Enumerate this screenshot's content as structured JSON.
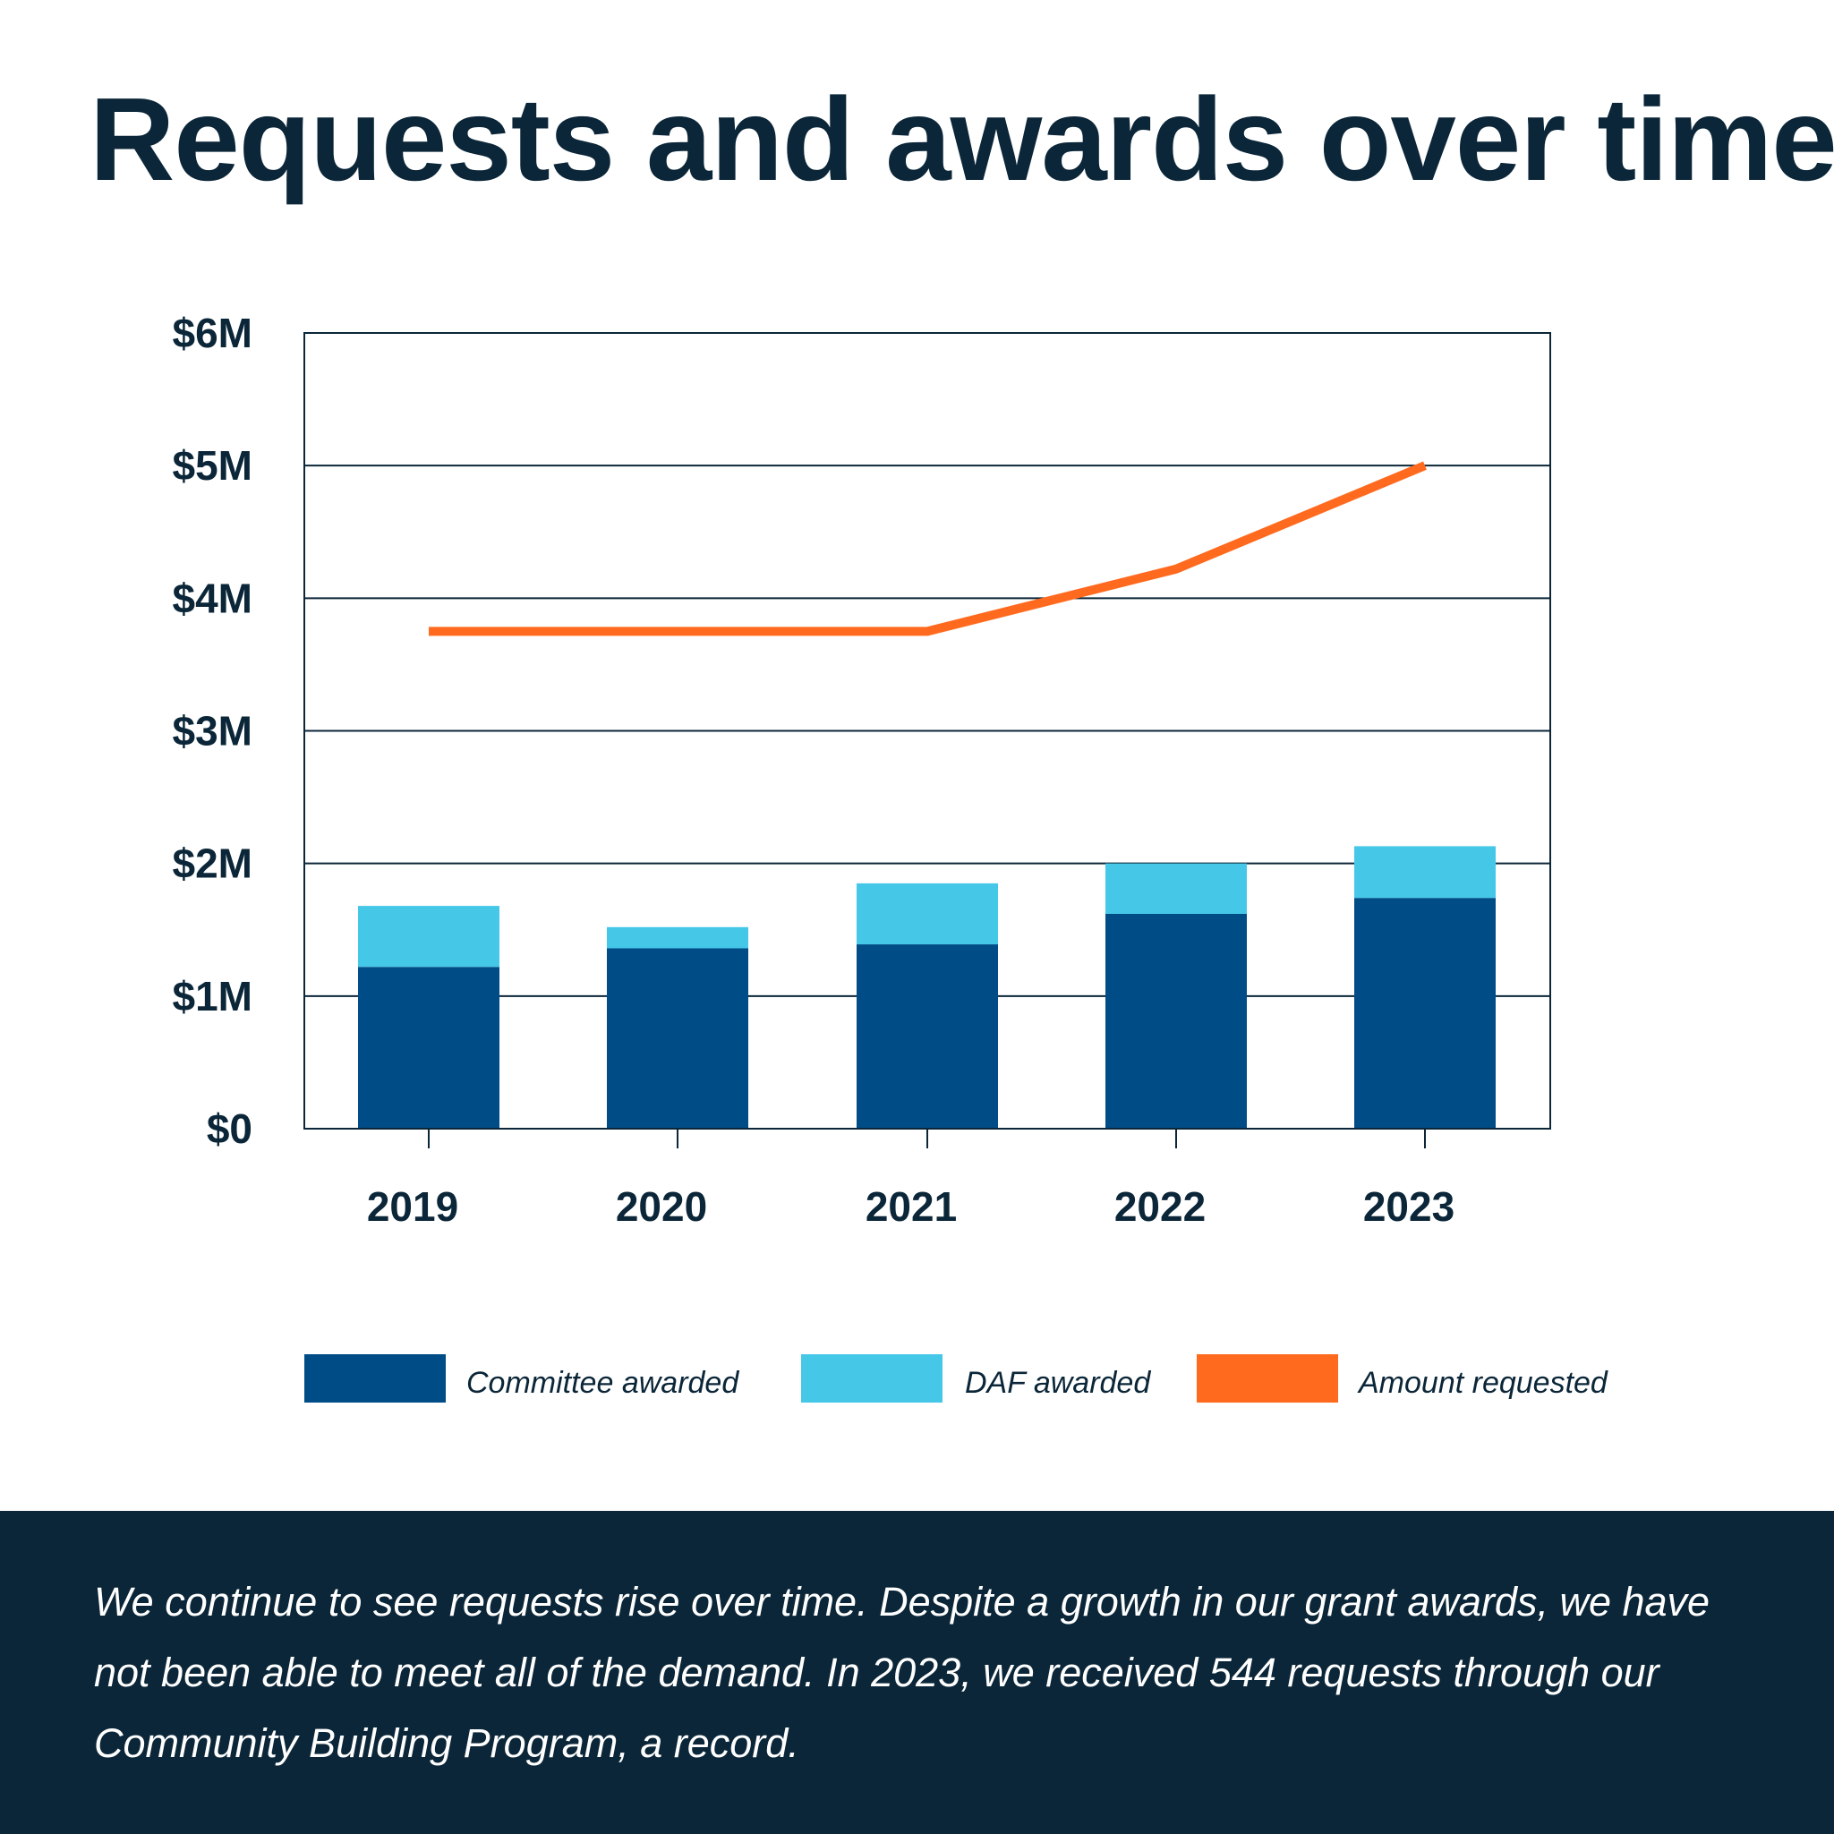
{
  "title": "Requests and awards over time",
  "chart_data": {
    "type": "bar",
    "stacked": true,
    "categories": [
      "2019",
      "2020",
      "2021",
      "2022",
      "2023"
    ],
    "series": [
      {
        "name": "Committee awarded",
        "kind": "bar",
        "color": "#004c87",
        "values": [
          1.22,
          1.36,
          1.39,
          1.62,
          1.74
        ]
      },
      {
        "name": "DAF awarded",
        "kind": "bar",
        "color": "#45c8e8",
        "values": [
          0.46,
          0.16,
          0.46,
          0.38,
          0.39
        ]
      },
      {
        "name": "Amount requested",
        "kind": "line",
        "color": "#ff6a1f",
        "values": [
          3.75,
          3.75,
          3.75,
          4.22,
          5.0
        ]
      }
    ],
    "yticks": [
      "$0",
      "$1M",
      "$2M",
      "$3M",
      "$4M",
      "$5M",
      "$6M"
    ],
    "ylim": [
      0,
      6
    ],
    "grid": true,
    "legend_position": "bottom"
  },
  "footer": {
    "text": "We continue to see requests rise over time. Despite a growth in our grant awards, we have not been able to meet all of the demand. In 2023, we received 544 requests through our Community Building Program, a record."
  }
}
